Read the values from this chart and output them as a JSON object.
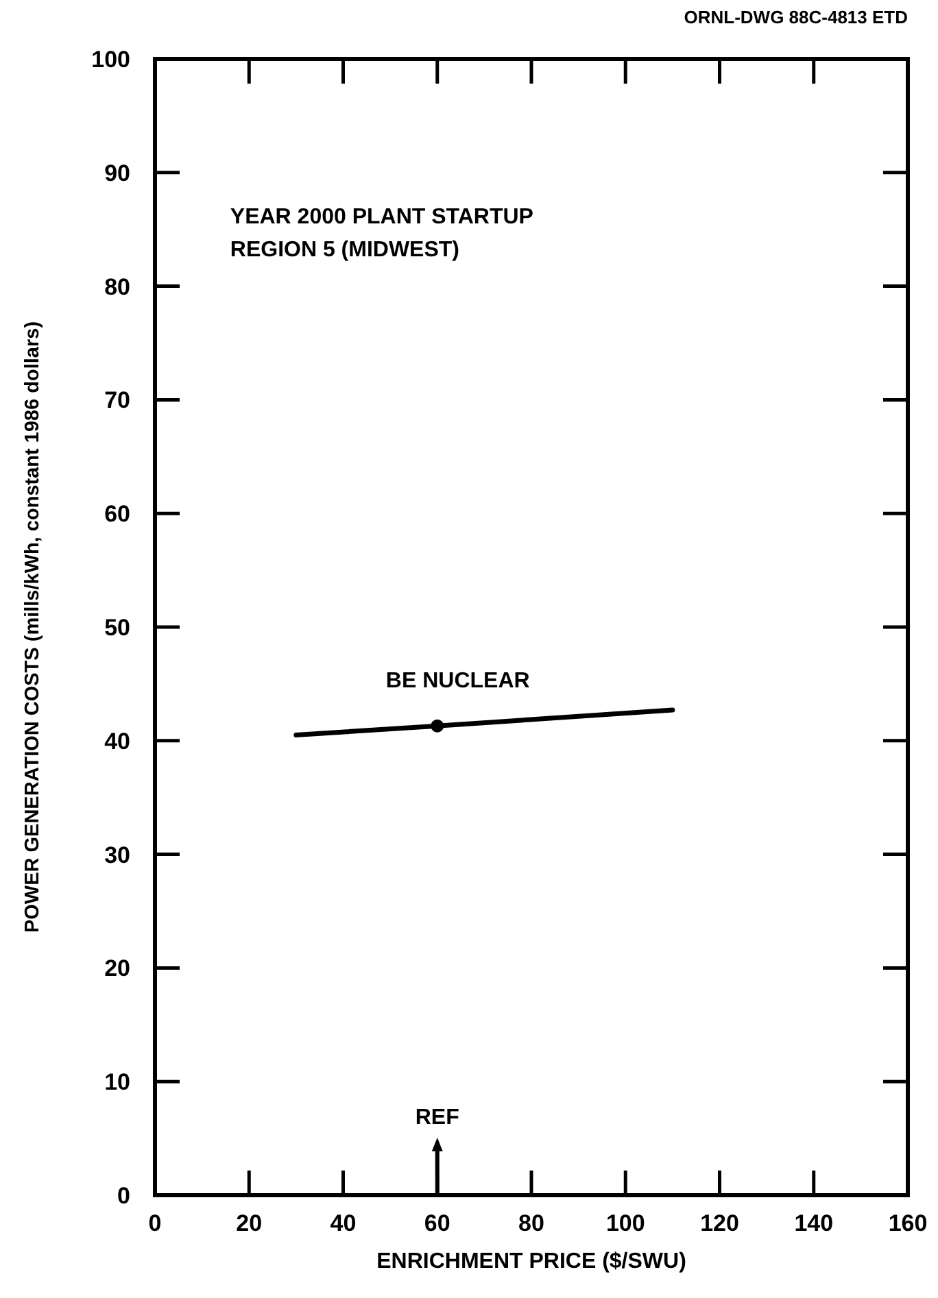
{
  "chart_data": {
    "type": "line",
    "xlabel": "ENRICHMENT PRICE ($/SWU)",
    "ylabel": "POWER GENERATION COSTS (mills/kWh, constant 1986 dollars)",
    "xlim": [
      0,
      160
    ],
    "xticks": [
      0,
      20,
      40,
      60,
      80,
      100,
      120,
      140,
      160
    ],
    "ylim": [
      0,
      100
    ],
    "yticks": [
      0,
      10,
      20,
      30,
      40,
      50,
      60,
      70,
      80,
      90,
      100
    ],
    "grid": false,
    "line_style": "solid",
    "series": [
      {
        "name": "BE NUCLEAR",
        "color": "#000000",
        "marker": "none",
        "x": [
          30,
          60,
          110
        ],
        "values": [
          40.5,
          41.3,
          42.7
        ]
      },
      {
        "type": "scatter",
        "color": "#000000",
        "marker": "circle",
        "x": [
          60
        ],
        "values": [
          41.3
        ]
      }
    ],
    "ref_lines": [
      {
        "axis": "x",
        "value": 60,
        "label": "REF"
      }
    ],
    "annotations": [
      "ORNL-DWG 88C-4813 ETD",
      "YEAR 2000 PLANT STARTUP",
      "REGION 5 (MIDWEST)"
    ]
  }
}
